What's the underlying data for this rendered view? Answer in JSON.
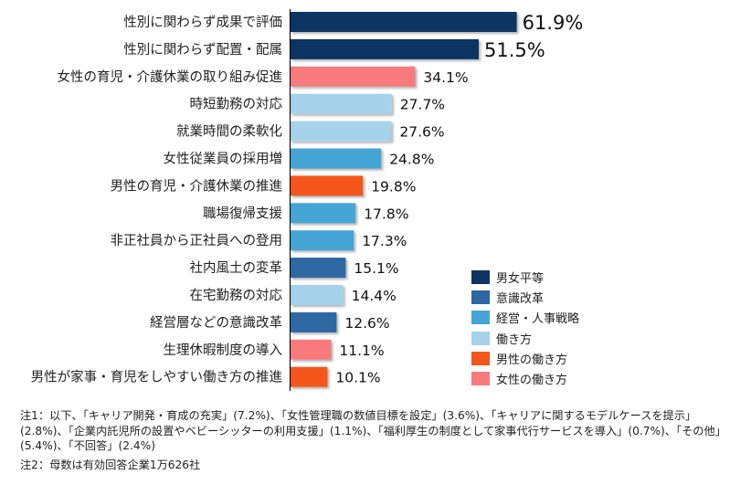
{
  "chart_data": {
    "type": "bar",
    "orientation": "horizontal",
    "title": "",
    "xlabel": "",
    "ylabel": "",
    "xlim": [
      0,
      70
    ],
    "grid": false,
    "value_suffix": "%",
    "categories": [
      "性別に関わらず成果で評価",
      "性別に関わらず配置・配属",
      "女性の育児・介護休業の取り組み促進",
      "時短勤務の対応",
      "就業時間の柔軟化",
      "女性従業員の採用増",
      "男性の育児・介護休業の推進",
      "職場復帰支援",
      "非正社員から正社員への登用",
      "社内風土の変革",
      "在宅勤務の対応",
      "経営層などの意識改革",
      "生理休暇制度の導入",
      "男性が家事・育児をしやすい働き方の推進"
    ],
    "values": [
      61.9,
      51.5,
      34.1,
      27.7,
      27.6,
      24.8,
      19.8,
      17.8,
      17.3,
      15.1,
      14.4,
      12.6,
      11.1,
      10.1
    ],
    "value_labels": [
      "61.9%",
      "51.5%",
      "34.1%",
      "27.7%",
      "27.6%",
      "24.8%",
      "19.8%",
      "17.8%",
      "17.3%",
      "15.1%",
      "14.4%",
      "12.6%",
      "11.1%",
      "10.1%"
    ],
    "groups": [
      "男女平等",
      "男女平等",
      "女性の働き方",
      "働き方",
      "働き方",
      "経営・人事戦略",
      "男性の働き方",
      "経営・人事戦略",
      "経営・人事戦略",
      "意識改革",
      "働き方",
      "意識改革",
      "女性の働き方",
      "男性の働き方"
    ],
    "legend": {
      "position": "bottom-right",
      "entries": [
        {
          "name": "男女平等",
          "color": "#0d3463"
        },
        {
          "name": "意識改革",
          "color": "#2e67a3"
        },
        {
          "name": "経営・人事戦略",
          "color": "#44a5d6"
        },
        {
          "name": "働き方",
          "color": "#a6d3eb"
        },
        {
          "name": "男性の働き方",
          "color": "#f4571e"
        },
        {
          "name": "女性の働き方",
          "color": "#f97a7c"
        }
      ]
    }
  },
  "notes": {
    "note1": "注1：以下、「キャリア開発・育成の充実」(7.2%)、「女性管理職の数値目標を設定」(3.6%)、「キャリアに関するモデルケースを提示」(2.8%)、「企業内託児所の設置やベビーシッターの利用支援」(1.1%)、「福利厚生の制度として家事代行サービスを導入」(0.7%)、「その他」(5.4%)、「不回答」(2.4%)",
    "note2": "注2：母数は有効回答企業1万626社"
  }
}
